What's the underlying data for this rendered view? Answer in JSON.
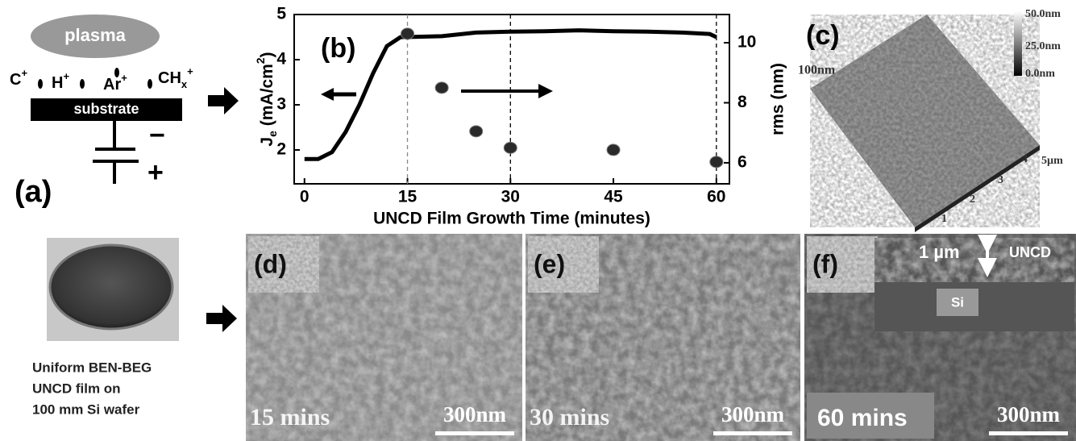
{
  "panel_a": {
    "plasma": "plasma",
    "ions": [
      {
        "base": "C",
        "sup": "+"
      },
      {
        "base": "H",
        "sup": "+"
      },
      {
        "base": "Ar",
        "sup": "+"
      },
      {
        "base": "CH",
        "sub": "x",
        "sup": "+"
      }
    ],
    "substrate": "substrate",
    "minus": "−",
    "plus": "+",
    "label": "(a)"
  },
  "wafer_caption": [
    "Uniform BEN-BEG",
    "UNCD film on",
    "100 mm Si wafer"
  ],
  "chart_data": {
    "type": "line",
    "label": "(b)",
    "xlabel": "UNCD Film Growth Time (minutes)",
    "ylabel": {
      "base": "J",
      "sub": "e",
      "rest": " (mA/cm",
      "sup": "2",
      "end": ")"
    },
    "y2label": "rms (nm)",
    "x": [
      0,
      2,
      4,
      6,
      8,
      10,
      12,
      14,
      15,
      20,
      25,
      30,
      35,
      40,
      45,
      50,
      55,
      59,
      60
    ],
    "series": [
      {
        "type": "line",
        "color": "#000000",
        "values": [
          1.8,
          1.8,
          1.95,
          2.4,
          3.0,
          3.7,
          4.3,
          4.5,
          4.5,
          4.52,
          4.6,
          4.62,
          4.63,
          4.65,
          4.63,
          4.62,
          4.6,
          4.57,
          4.5
        ]
      },
      {
        "type": "scatter",
        "axis": "y2",
        "color": "#2a2a2a",
        "x": [
          15,
          20,
          25,
          30,
          45,
          60
        ],
        "values": [
          10.3,
          8.5,
          7.05,
          6.5,
          6.43,
          6.03
        ]
      }
    ],
    "vlines": [
      15,
      30,
      60
    ],
    "xlim": [
      -1.5,
      61.9
    ],
    "xticks": [
      0,
      15,
      30,
      45,
      60
    ],
    "ylim": [
      1.25,
      5
    ],
    "yticks": [
      2,
      3,
      4,
      5
    ],
    "y2lim": [
      5.3,
      10.94
    ],
    "y2ticks": [
      6,
      8,
      10
    ]
  },
  "panel_c": {
    "label": "(c)",
    "height": "100nm",
    "colorbar": [
      "50.0nm",
      "25.0nm",
      "0.0nm"
    ],
    "size": "5µm",
    "axis_ticks": [
      "1",
      "2",
      "3",
      "4"
    ]
  },
  "panels": [
    {
      "label": "(d)",
      "time": "15 mins",
      "scale": "300nm"
    },
    {
      "label": "(e)",
      "time": "30 mins",
      "scale": "300nm"
    },
    {
      "label": "(f)",
      "time": "60 mins",
      "scale": "300nm"
    }
  ],
  "panel_f_inset": {
    "thickness": "1 µm",
    "film": "UNCD",
    "substrate": "Si"
  }
}
